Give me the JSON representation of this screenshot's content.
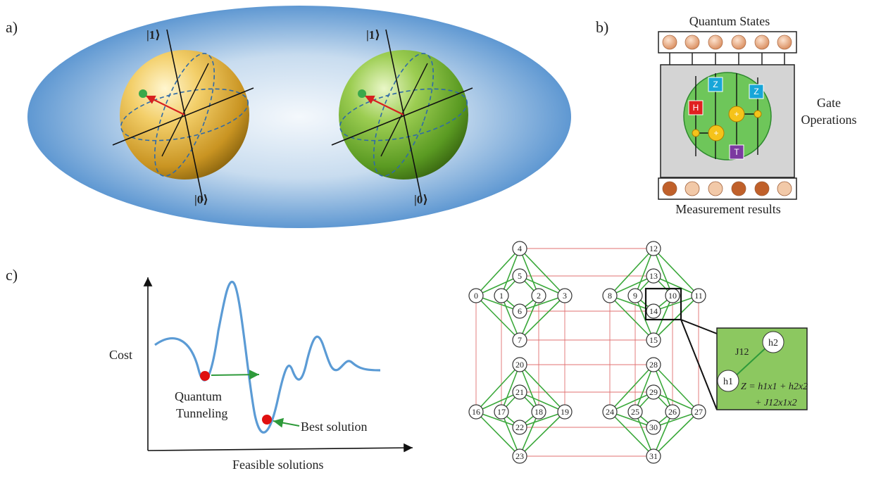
{
  "panel_a": {
    "label": "a)",
    "sphere_left": {
      "top_ket": "|1⟩",
      "bottom_ket": "|0⟩",
      "color": "#e8b840"
    },
    "sphere_right": {
      "top_ket": "|1⟩",
      "bottom_ket": "|0⟩",
      "color": "#6ab030"
    }
  },
  "panel_b": {
    "label": "b)",
    "title": "Quantum States",
    "side_label_line1": "Gate",
    "side_label_line2": "Operations",
    "bottom_label": "Measurement results",
    "gates": [
      "H",
      "Z",
      "Z",
      "T",
      "+",
      "+"
    ],
    "measurement_colors": [
      "#c0602a",
      "#f2c9a8",
      "#f2c9a8",
      "#c0602a",
      "#c0602a",
      "#f2c9a8"
    ]
  },
  "panel_c": {
    "label": "c)",
    "y_axis_label": "Cost",
    "x_axis_label": "Feasible solutions",
    "tunneling_line1": "Quantum",
    "tunneling_line2": "Tunneling",
    "best_solution": "Best solution",
    "graph_nodes": [
      "0",
      "1",
      "2",
      "3",
      "4",
      "5",
      "6",
      "7",
      "8",
      "9",
      "10",
      "11",
      "12",
      "13",
      "14",
      "15",
      "16",
      "17",
      "18",
      "19",
      "20",
      "21",
      "22",
      "23",
      "24",
      "25",
      "26",
      "27",
      "28",
      "29",
      "30",
      "31"
    ],
    "inset": {
      "h1": "h1",
      "h2": "h2",
      "j12": "J12",
      "equation_line1": "Z = h1x1 + h2x2",
      "equation_line2": "+ J12x1x2"
    }
  }
}
